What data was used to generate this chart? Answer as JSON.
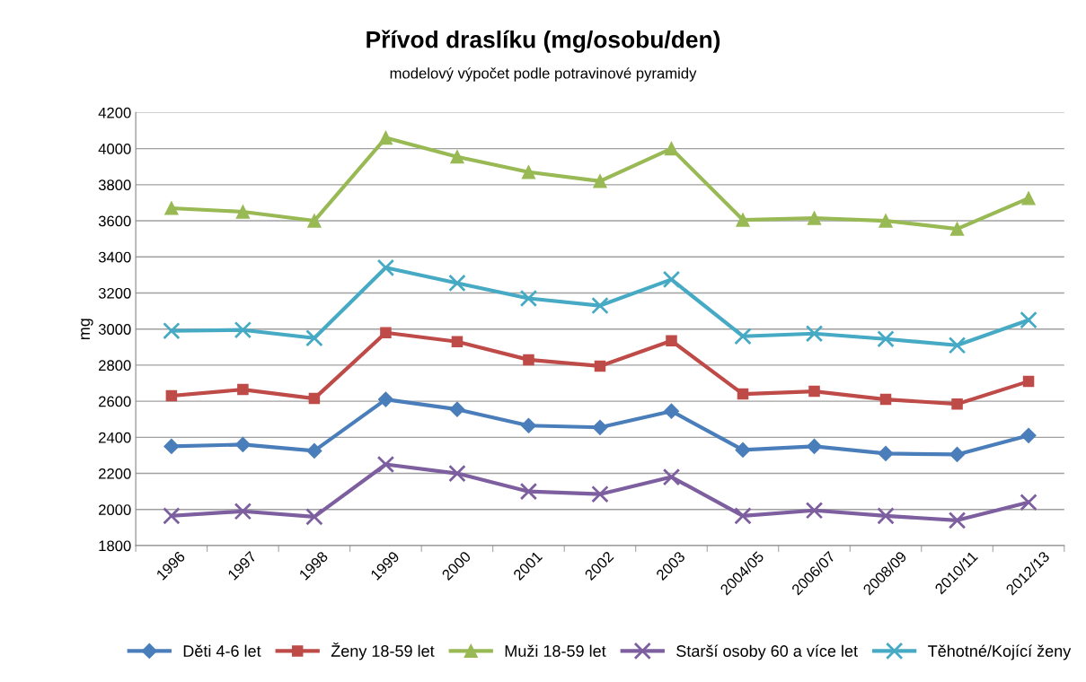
{
  "chart_data": {
    "type": "line",
    "title": "Přívod draslíku (mg/osobu/den)",
    "subtitle": "modelový výpočet podle potravinové pyramidy",
    "ylabel": "mg",
    "categories": [
      "1996",
      "1997",
      "1998",
      "1999",
      "2000",
      "2001",
      "2002",
      "2003",
      "2004/05",
      "2006/07",
      "2008/09",
      "2010/11",
      "2012/13"
    ],
    "series": [
      {
        "name": "Děti 4-6 let",
        "color": "#4a7ebb",
        "marker": "diamond",
        "values": [
          2350,
          2360,
          2325,
          2610,
          2555,
          2465,
          2455,
          2545,
          2330,
          2350,
          2310,
          2305,
          2410
        ]
      },
      {
        "name": "Ženy 18-59 let",
        "color": "#be4b48",
        "marker": "square",
        "values": [
          2630,
          2665,
          2615,
          2980,
          2930,
          2830,
          2795,
          2935,
          2640,
          2655,
          2610,
          2585,
          2710
        ]
      },
      {
        "name": "Muži 18-59 let",
        "color": "#98b954",
        "marker": "triangle",
        "values": [
          3670,
          3650,
          3600,
          4060,
          3955,
          3870,
          3820,
          4000,
          3605,
          3615,
          3600,
          3555,
          3725
        ]
      },
      {
        "name": "Starší osoby 60 a více let",
        "color": "#7d5fa0",
        "marker": "cross",
        "values": [
          1965,
          1990,
          1960,
          2250,
          2200,
          2100,
          2085,
          2180,
          1965,
          1995,
          1965,
          1940,
          2040
        ]
      },
      {
        "name": "Těhotné/Kojící ženy",
        "color": "#46aac5",
        "marker": "cross",
        "values": [
          2990,
          2995,
          2950,
          3340,
          3255,
          3170,
          3130,
          3275,
          2960,
          2975,
          2945,
          2910,
          3050
        ]
      }
    ],
    "ylim": [
      1800,
      4200
    ],
    "yticks": [
      1800,
      2000,
      2200,
      2400,
      2600,
      2800,
      3000,
      3200,
      3400,
      3600,
      3800,
      4000,
      4200
    ],
    "grid": "y",
    "legend": "bottom",
    "line_style": "solid"
  }
}
